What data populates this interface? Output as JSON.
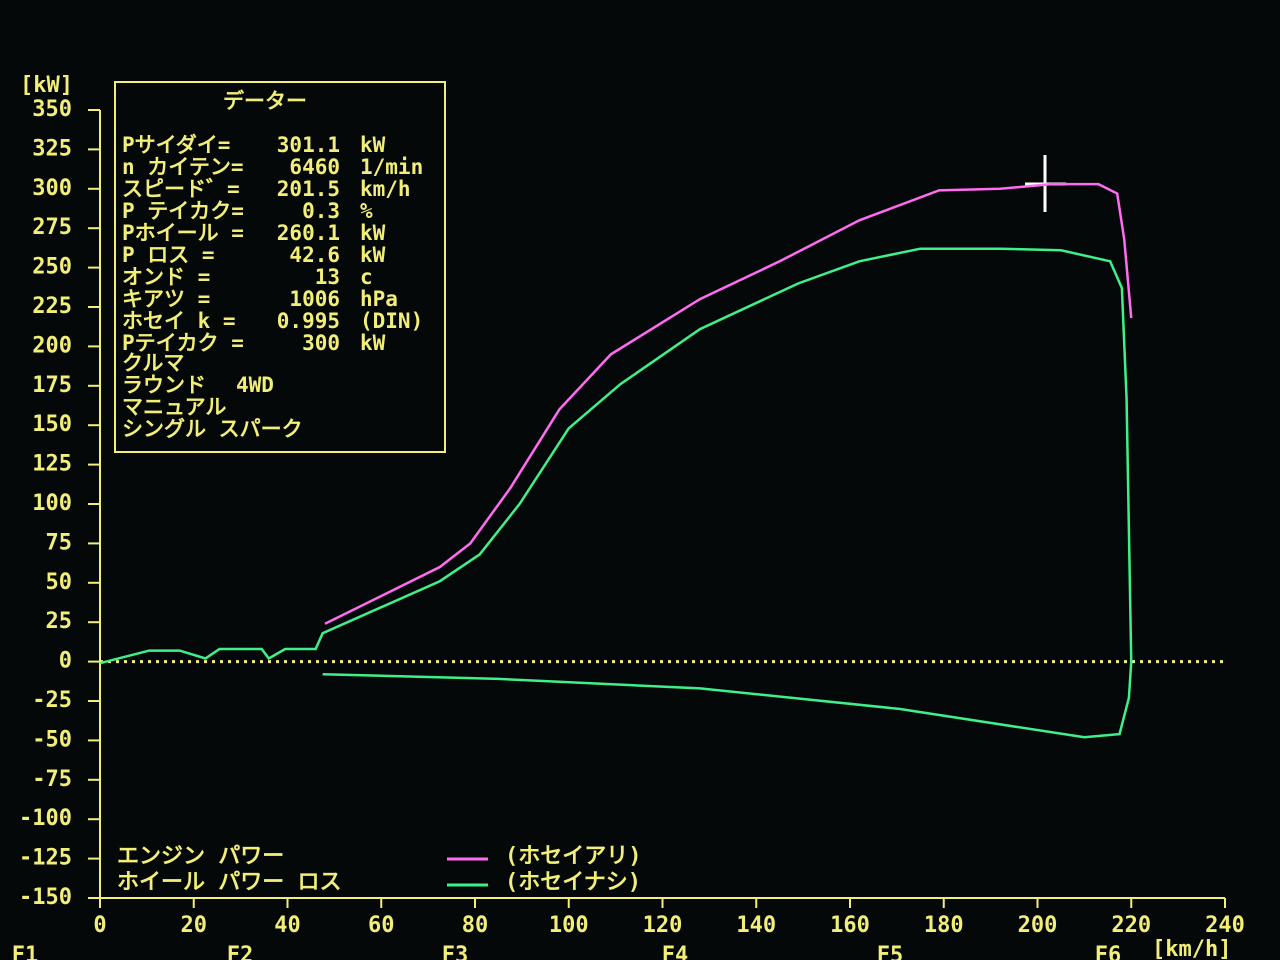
{
  "chart_data": {
    "type": "line",
    "y_unit": "[kW]",
    "x_unit": "[km/h]",
    "xlim": [
      0,
      240
    ],
    "xticks": [
      0,
      20,
      40,
      60,
      80,
      100,
      120,
      140,
      160,
      180,
      200,
      220,
      240
    ],
    "ylim": [
      -150,
      350
    ],
    "yticks": [
      350,
      325,
      300,
      275,
      250,
      225,
      200,
      175,
      150,
      125,
      100,
      75,
      50,
      25,
      0,
      -25,
      -50,
      -75,
      -100,
      -125,
      -150
    ],
    "zero_line_color": "#f2ee78",
    "series_labels": [
      "エンジン パワー",
      "ホイール パワー ロス"
    ],
    "series": [
      {
        "name": "(ホセイアリ)",
        "color": "#ff6cf0",
        "x": [
          48,
          72.5,
          79,
          87.5,
          98,
          109,
          128,
          145,
          162,
          179,
          192,
          203,
          213,
          217,
          218.5,
          220
        ],
        "values": [
          24,
          60,
          75,
          110,
          160,
          195,
          230,
          254,
          280,
          299,
          300,
          303,
          303,
          297,
          268,
          218
        ]
      },
      {
        "name": "(ホセイナシ)",
        "color": "#3ff08a",
        "x": [
          0,
          10.5,
          17,
          22.5,
          25.5,
          34.5,
          36,
          39.5,
          46,
          47.5,
          72.5,
          81,
          89.5,
          100,
          111,
          128,
          149,
          162,
          175,
          192,
          205,
          215.5,
          218,
          219,
          220,
          219.5,
          217.5,
          210,
          170.5,
          128,
          85,
          47.5
        ],
        "values": [
          -1,
          7,
          7,
          2,
          8,
          8,
          2,
          8,
          8,
          18,
          51,
          68,
          100,
          148,
          176,
          211,
          240,
          254,
          262,
          262,
          261,
          254,
          237,
          167,
          0,
          -23,
          -46,
          -48,
          -30,
          -17,
          -11,
          -8
        ]
      }
    ],
    "function_keys": [
      "F1",
      "F2",
      "F3",
      "F4",
      "F5",
      "F6"
    ]
  },
  "info_panel": {
    "title": "データー",
    "rows": [
      {
        "label": "Pサイダイ=",
        "value": "301.1",
        "unit": "kW"
      },
      {
        "label": "n カイテン=",
        "value": "6460",
        "unit": "1/min"
      },
      {
        "label": "スピード゛=",
        "value": "201.5",
        "unit": "km/h"
      },
      {
        "label": "P テイカク=",
        "value": "0.3",
        "unit": "%"
      },
      {
        "label": "Pホイール =",
        "value": "260.1",
        "unit": "kW"
      },
      {
        "label": "P ロス   =",
        "value": "42.6",
        "unit": "kW"
      },
      {
        "label": "オンド   =",
        "value": "13",
        "unit": "c"
      },
      {
        "label": "キアツ   =",
        "value": "1006",
        "unit": "hPa"
      },
      {
        "label": "ホセイ k =",
        "value": "0.995",
        "unit": "(DIN)"
      },
      {
        "label": "Pテイカク =",
        "value": "300",
        "unit": "kW"
      }
    ],
    "vehicle": [
      "クルマ",
      "ラウンド",
      "マニュアル",
      "シングル スパーク"
    ],
    "drive": "4WD"
  }
}
